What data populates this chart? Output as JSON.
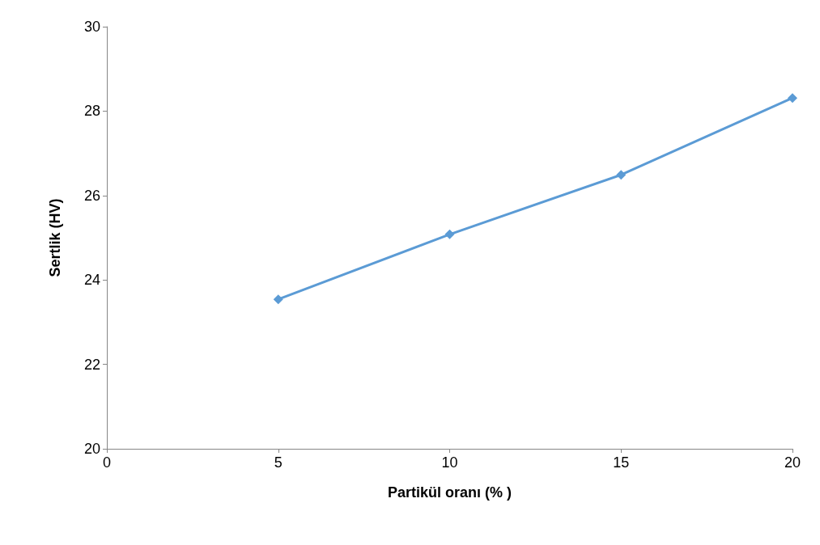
{
  "chart_data": {
    "type": "line",
    "xlabel": "Partikül oranı (% )",
    "ylabel": "Sertlik (HV)",
    "x": [
      5,
      10,
      15,
      20
    ],
    "series": [
      {
        "color": "#5b9bd5",
        "values": [
          23.54,
          25.08,
          26.49,
          28.31
        ]
      }
    ],
    "xlim": [
      0,
      20
    ],
    "xticks": [
      0,
      5,
      10,
      15,
      20
    ],
    "ylim": [
      20,
      30
    ],
    "yticks": [
      20,
      22,
      24,
      26,
      28,
      30
    ],
    "grid": false,
    "marker": "diamond",
    "line_style": "solid"
  }
}
